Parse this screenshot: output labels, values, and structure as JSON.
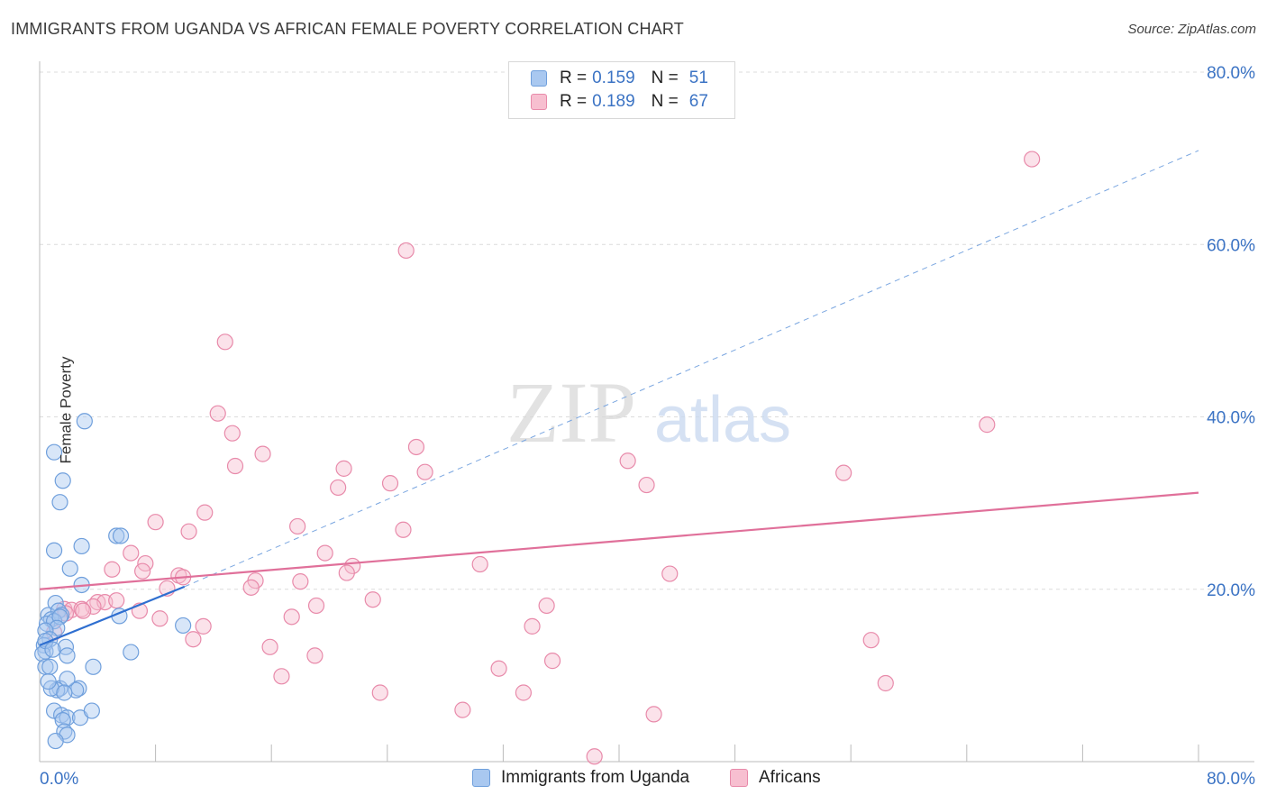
{
  "title": "IMMIGRANTS FROM UGANDA VS AFRICAN FEMALE POVERTY CORRELATION CHART",
  "source": "Source: ZipAtlas.com",
  "watermark": {
    "zip": "ZIP",
    "atlas": "atlas"
  },
  "legend": [
    {
      "r_label": "R =",
      "r_value": "0.159",
      "n_label": "N =",
      "n_value": "51"
    },
    {
      "r_label": "R =",
      "r_value": "0.189",
      "n_label": "N =",
      "n_value": "67"
    }
  ],
  "colors": {
    "blue_fill": "#a9c8f0",
    "blue_stroke": "#6f9fdc",
    "blue_line": "#2f6fd0",
    "pink_fill": "#f7bfd0",
    "pink_stroke": "#e88aaa",
    "pink_line": "#e0709a",
    "axis_label": "#3b73c4",
    "grid": "#dcdcdc"
  },
  "chart_data": {
    "type": "scatter",
    "title": "IMMIGRANTS FROM UGANDA VS AFRICAN FEMALE POVERTY CORRELATION CHART",
    "xlabel": "",
    "ylabel": "Female Poverty",
    "xlim": [
      0,
      80
    ],
    "ylim": [
      0,
      80
    ],
    "x_tick_labels": [
      "0.0%",
      "80.0%"
    ],
    "y_tick_labels": [
      "20.0%",
      "40.0%",
      "60.0%",
      "80.0%"
    ],
    "y_ticks": [
      20,
      40,
      60,
      80
    ],
    "series": [
      {
        "name": "Immigrants from Uganda",
        "color": "blue",
        "r": 0.159,
        "n": 51,
        "trend": {
          "x": [
            0,
            10
          ],
          "y": [
            13.5,
            20.3
          ],
          "style": "solid"
        },
        "trend_extended": {
          "x": [
            10,
            80
          ],
          "y": [
            20.3,
            70.9
          ],
          "style": "dashed"
        },
        "points": [
          [
            3.1,
            39.5
          ],
          [
            1.0,
            35.9
          ],
          [
            1.6,
            32.6
          ],
          [
            1.4,
            30.1
          ],
          [
            1.0,
            24.5
          ],
          [
            2.9,
            25.0
          ],
          [
            5.3,
            26.2
          ],
          [
            5.6,
            26.2
          ],
          [
            2.1,
            22.4
          ],
          [
            2.9,
            20.5
          ],
          [
            1.1,
            18.4
          ],
          [
            0.6,
            17.0
          ],
          [
            1.3,
            17.5
          ],
          [
            1.5,
            17.0
          ],
          [
            0.8,
            16.5
          ],
          [
            0.5,
            16.0
          ],
          [
            1.0,
            16.3
          ],
          [
            1.4,
            16.8
          ],
          [
            1.2,
            15.5
          ],
          [
            0.4,
            15.2
          ],
          [
            0.7,
            14.2
          ],
          [
            0.3,
            13.5
          ],
          [
            0.4,
            12.8
          ],
          [
            0.2,
            12.5
          ],
          [
            1.8,
            13.3
          ],
          [
            1.9,
            12.3
          ],
          [
            0.4,
            11.0
          ],
          [
            0.7,
            11.0
          ],
          [
            3.7,
            11.0
          ],
          [
            2.7,
            8.5
          ],
          [
            2.5,
            8.3
          ],
          [
            1.4,
            8.5
          ],
          [
            1.2,
            8.3
          ],
          [
            0.8,
            8.5
          ],
          [
            0.6,
            9.3
          ],
          [
            1.9,
            9.6
          ],
          [
            1.0,
            5.9
          ],
          [
            1.5,
            5.4
          ],
          [
            1.9,
            5.1
          ],
          [
            2.8,
            5.1
          ],
          [
            3.6,
            5.9
          ],
          [
            1.6,
            4.8
          ],
          [
            1.7,
            3.5
          ],
          [
            1.9,
            3.1
          ],
          [
            1.1,
            2.4
          ],
          [
            5.5,
            16.9
          ],
          [
            6.3,
            12.7
          ],
          [
            9.9,
            15.8
          ],
          [
            0.4,
            14.0
          ],
          [
            0.9,
            13.0
          ],
          [
            1.7,
            8.0
          ]
        ]
      },
      {
        "name": "Africans",
        "color": "pink",
        "r": 0.189,
        "n": 67,
        "trend": {
          "x": [
            0,
            80
          ],
          "y": [
            20.0,
            31.2
          ],
          "style": "solid"
        },
        "points": [
          [
            68.5,
            69.9
          ],
          [
            25.3,
            59.3
          ],
          [
            12.8,
            48.7
          ],
          [
            12.3,
            40.4
          ],
          [
            13.3,
            38.1
          ],
          [
            13.5,
            34.3
          ],
          [
            15.4,
            35.7
          ],
          [
            26.0,
            36.5
          ],
          [
            21.0,
            34.0
          ],
          [
            26.6,
            33.6
          ],
          [
            20.6,
            31.8
          ],
          [
            24.2,
            32.3
          ],
          [
            40.6,
            34.9
          ],
          [
            41.9,
            32.1
          ],
          [
            55.5,
            33.5
          ],
          [
            65.4,
            39.1
          ],
          [
            11.4,
            28.9
          ],
          [
            10.3,
            26.7
          ],
          [
            8.0,
            27.8
          ],
          [
            17.8,
            27.3
          ],
          [
            25.1,
            26.9
          ],
          [
            6.3,
            24.2
          ],
          [
            19.7,
            24.2
          ],
          [
            7.3,
            23.0
          ],
          [
            7.1,
            22.1
          ],
          [
            5.0,
            22.3
          ],
          [
            21.6,
            22.7
          ],
          [
            30.4,
            22.9
          ],
          [
            9.6,
            21.6
          ],
          [
            9.9,
            21.4
          ],
          [
            14.9,
            21.0
          ],
          [
            18.0,
            20.9
          ],
          [
            8.8,
            20.1
          ],
          [
            14.6,
            20.2
          ],
          [
            21.2,
            21.9
          ],
          [
            43.5,
            21.8
          ],
          [
            4.0,
            18.5
          ],
          [
            4.5,
            18.5
          ],
          [
            5.3,
            18.7
          ],
          [
            3.7,
            18.0
          ],
          [
            1.7,
            17.7
          ],
          [
            2.2,
            17.6
          ],
          [
            1.8,
            17.2
          ],
          [
            2.9,
            17.7
          ],
          [
            3.0,
            17.5
          ],
          [
            6.9,
            17.5
          ],
          [
            8.3,
            16.6
          ],
          [
            11.3,
            15.7
          ],
          [
            17.4,
            16.8
          ],
          [
            19.1,
            18.1
          ],
          [
            23.0,
            18.8
          ],
          [
            35.0,
            18.1
          ],
          [
            34.0,
            15.7
          ],
          [
            10.6,
            14.2
          ],
          [
            15.9,
            13.3
          ],
          [
            19.0,
            12.3
          ],
          [
            35.4,
            11.7
          ],
          [
            16.7,
            9.9
          ],
          [
            31.7,
            10.8
          ],
          [
            33.4,
            8.0
          ],
          [
            23.5,
            8.0
          ],
          [
            29.2,
            6.0
          ],
          [
            42.4,
            5.5
          ],
          [
            38.3,
            0.6
          ],
          [
            57.4,
            14.1
          ],
          [
            58.4,
            9.1
          ],
          [
            1.0,
            15.0
          ]
        ]
      }
    ],
    "legend_position": "top-center"
  },
  "bottom_legend": [
    {
      "label": "Immigrants from Uganda"
    },
    {
      "label": "Africans"
    }
  ]
}
